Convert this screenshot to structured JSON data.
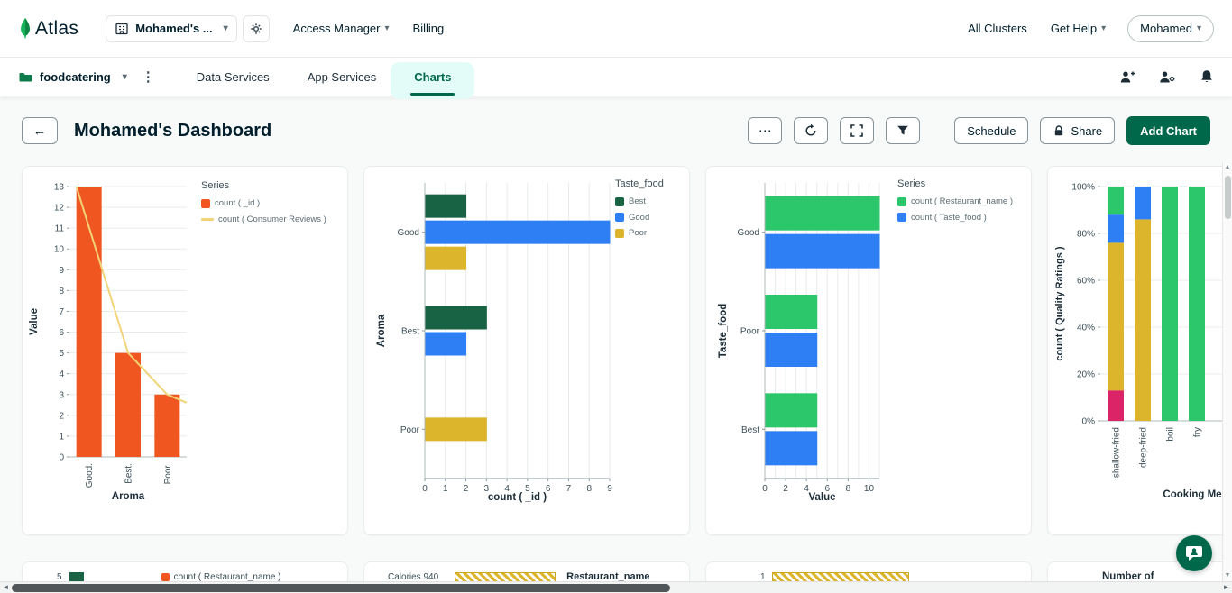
{
  "topnav": {
    "brand": "Atlas",
    "org_selector": "Mohamed's ...",
    "access_manager": "Access Manager",
    "billing": "Billing",
    "all_clusters": "All Clusters",
    "get_help": "Get Help",
    "user_menu": "Mohamed"
  },
  "projectnav": {
    "project_name": "foodcatering",
    "tabs": [
      {
        "label": "Data Services",
        "active": false
      },
      {
        "label": "App Services",
        "active": false
      },
      {
        "label": "Charts",
        "active": true
      }
    ]
  },
  "header": {
    "title": "Mohamed's Dashboard",
    "schedule_label": "Schedule",
    "share_label": "Share",
    "add_chart_label": "Add Chart"
  },
  "colors": {
    "brand_green": "#00684A",
    "active_tab_green": "#00684A",
    "series_orange": "#F0561F",
    "series_line_yellow": "#F2D478",
    "series_dark_green": "#186343",
    "series_blue": "#2D7FF3",
    "series_gold": "#DCB52C",
    "series_bright_green": "#2DC76B",
    "series_magenta": "#DB2468"
  },
  "chart_data": [
    {
      "id": "chart1",
      "type": "combo",
      "legend_title": "Series",
      "categories": [
        "Good.",
        "Best.",
        "Poor."
      ],
      "series": [
        {
          "name": "count ( _id )",
          "kind": "bar",
          "color": "#F0561F",
          "values": [
            13,
            5,
            3
          ]
        },
        {
          "name": "count ( Consumer Reviews )",
          "kind": "line",
          "color": "#F2D478",
          "values": [
            13,
            5,
            3
          ]
        }
      ],
      "xlabel": "Aroma",
      "ylabel": "Value",
      "ylim": [
        0,
        13
      ],
      "yticks": [
        0,
        1,
        2,
        3,
        4,
        5,
        6,
        7,
        8,
        9,
        10,
        11,
        12,
        13
      ]
    },
    {
      "id": "chart2",
      "type": "bar-horizontal-grouped",
      "legend_title": "Taste_food",
      "categories": [
        "Good",
        "Best",
        "Poor"
      ],
      "series": [
        {
          "name": "Best",
          "color": "#186343",
          "values": [
            2,
            3,
            0
          ]
        },
        {
          "name": "Good",
          "color": "#2D7FF3",
          "values": [
            9,
            2,
            0
          ]
        },
        {
          "name": "Poor",
          "color": "#DCB52C",
          "values": [
            2,
            0,
            3
          ]
        }
      ],
      "xlabel": "count ( _id )",
      "ylabel": "Aroma",
      "xlim": [
        0,
        9
      ],
      "xticks": [
        0,
        1,
        2,
        3,
        4,
        5,
        6,
        7,
        8,
        9
      ]
    },
    {
      "id": "chart3",
      "type": "bar-horizontal-grouped",
      "legend_title": "Series",
      "categories": [
        "Good",
        "Poor",
        "Best"
      ],
      "series": [
        {
          "name": "count ( Restaurant_name )",
          "color": "#2DC76B",
          "values": [
            11,
            5,
            5
          ]
        },
        {
          "name": "count ( Taste_food )",
          "color": "#2D7FF3",
          "values": [
            11,
            5,
            5
          ]
        }
      ],
      "xlabel": "Value",
      "ylabel": "Taste_food",
      "xlim": [
        0,
        11
      ],
      "xticks": [
        0,
        2,
        4,
        6,
        8,
        10
      ]
    },
    {
      "id": "chart4",
      "type": "bar-stacked-100",
      "categories": [
        "shallow-fried",
        "deep-fried",
        "boil",
        "fry"
      ],
      "series": [
        {
          "name": "segment-magenta",
          "color": "#DB2468",
          "values": [
            13,
            0,
            0,
            0
          ]
        },
        {
          "name": "segment-gold",
          "color": "#DCB52C",
          "values": [
            63,
            86,
            0,
            0
          ]
        },
        {
          "name": "segment-blue",
          "color": "#2D7FF3",
          "values": [
            12,
            14,
            0,
            0
          ]
        },
        {
          "name": "segment-green",
          "color": "#2DC76B",
          "values": [
            12,
            0,
            100,
            100
          ]
        }
      ],
      "xlabel": "Cooking Me",
      "ylabel": "count ( Quality Ratings )",
      "ylim": [
        0,
        100
      ],
      "yticks": [
        "0%",
        "20%",
        "40%",
        "60%",
        "80%",
        "100%"
      ]
    }
  ],
  "bottom_cards": [
    {
      "tick": "5",
      "legend": "count ( Restaurant_name )"
    },
    {
      "label": "Calories 940",
      "title": "Restaurant_name"
    },
    {
      "tick": "1"
    },
    {
      "title": "Number of"
    }
  ]
}
